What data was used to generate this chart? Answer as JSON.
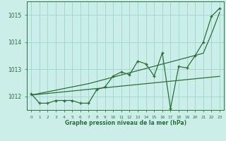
{
  "x": [
    0,
    1,
    2,
    3,
    4,
    5,
    6,
    7,
    8,
    9,
    10,
    11,
    12,
    13,
    14,
    15,
    16,
    17,
    18,
    19,
    20,
    21,
    22,
    23
  ],
  "y_main": [
    1012.1,
    1011.75,
    1011.75,
    1011.85,
    1011.85,
    1011.85,
    1011.75,
    1011.75,
    1012.25,
    1012.35,
    1012.75,
    1012.9,
    1012.8,
    1013.3,
    1013.2,
    1012.75,
    1013.6,
    1011.55,
    1013.1,
    1013.05,
    1013.5,
    1014.0,
    1014.95,
    1015.25
  ],
  "y_trend_low": [
    1012.05,
    1012.08,
    1012.11,
    1012.14,
    1012.17,
    1012.2,
    1012.23,
    1012.26,
    1012.29,
    1012.32,
    1012.35,
    1012.38,
    1012.41,
    1012.44,
    1012.47,
    1012.5,
    1012.53,
    1012.56,
    1012.59,
    1012.62,
    1012.65,
    1012.68,
    1012.71,
    1012.74
  ],
  "y_trend_high": [
    1012.05,
    1012.11,
    1012.17,
    1012.23,
    1012.29,
    1012.35,
    1012.41,
    1012.47,
    1012.55,
    1012.63,
    1012.71,
    1012.79,
    1012.87,
    1012.95,
    1013.03,
    1013.11,
    1013.19,
    1013.27,
    1013.35,
    1013.43,
    1013.51,
    1013.59,
    1014.3,
    1015.1
  ],
  "background_color": "#cceee8",
  "grid_color": "#9dd4cc",
  "line_color": "#2d6e3e",
  "xlabel": "Graphe pression niveau de la mer (hPa)",
  "ylim": [
    1011.5,
    1015.5
  ],
  "xlim": [
    -0.5,
    23.5
  ],
  "yticks": [
    1012,
    1013,
    1014,
    1015
  ],
  "xticks": [
    0,
    1,
    2,
    3,
    4,
    5,
    6,
    7,
    8,
    9,
    10,
    11,
    12,
    13,
    14,
    15,
    16,
    17,
    18,
    19,
    20,
    21,
    22,
    23
  ],
  "figsize": [
    3.2,
    2.0
  ],
  "dpi": 100
}
